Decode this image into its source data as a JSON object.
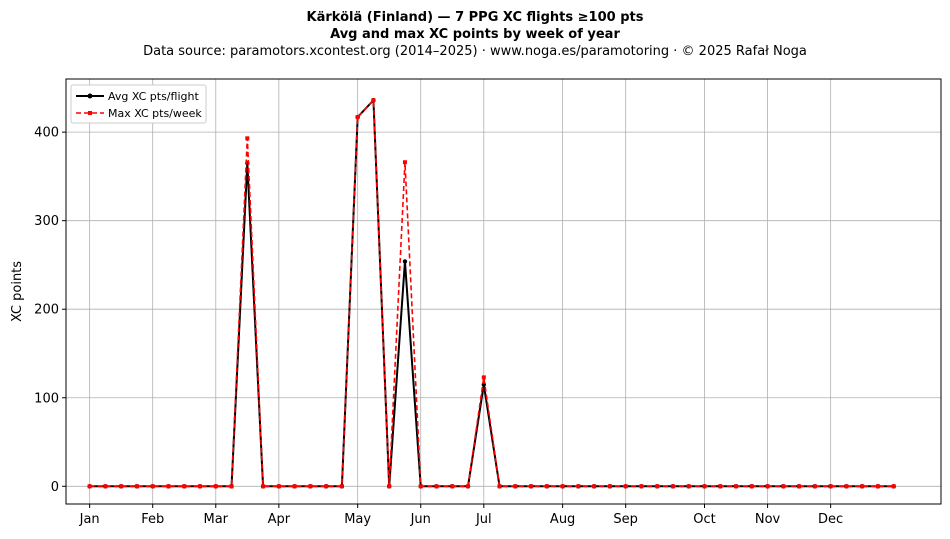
{
  "title": "Kärkölä (Finland)  —  7 PPG XC flights ≥100 pts",
  "subtitle": "Avg and max XC points by week of year",
  "source_line": "Data source: paramotors.xcontest.org (2014–2025)  ·  www.noga.es/paramotoring  ·  © 2025 Rafał Noga",
  "chart_data": {
    "type": "line",
    "x_label": "",
    "y_label": "XC points",
    "x_range": [
      -1.5,
      54
    ],
    "y_range": [
      -20,
      460
    ],
    "y_ticks": [
      0,
      100,
      200,
      300,
      400
    ],
    "x_ticks": [
      {
        "week": 0,
        "label": "Jan"
      },
      {
        "week": 4,
        "label": "Feb"
      },
      {
        "week": 8,
        "label": "Mar"
      },
      {
        "week": 12,
        "label": "Apr"
      },
      {
        "week": 17,
        "label": "May"
      },
      {
        "week": 21,
        "label": "Jun"
      },
      {
        "week": 25,
        "label": "Jul"
      },
      {
        "week": 30,
        "label": "Aug"
      },
      {
        "week": 34,
        "label": "Sep"
      },
      {
        "week": 39,
        "label": "Oct"
      },
      {
        "week": 43,
        "label": "Nov"
      },
      {
        "week": 47,
        "label": "Dec"
      }
    ],
    "grid": true,
    "legend_position": "top-left",
    "x": [
      0,
      1,
      2,
      3,
      4,
      5,
      6,
      7,
      8,
      9,
      10,
      11,
      12,
      13,
      14,
      15,
      16,
      17,
      18,
      19,
      20,
      21,
      22,
      23,
      24,
      25,
      26,
      27,
      28,
      29,
      30,
      31,
      32,
      33,
      34,
      35,
      36,
      37,
      38,
      39,
      40,
      41,
      42,
      43,
      44,
      45,
      46,
      47,
      48,
      49,
      50,
      51
    ],
    "series": [
      {
        "name": "Avg XC pts/flight",
        "color": "#000000",
        "style": "solid-circle",
        "values": [
          0,
          0,
          0,
          0,
          0,
          0,
          0,
          0,
          0,
          0,
          365,
          0,
          0,
          0,
          0,
          0,
          0,
          417,
          436,
          0,
          254,
          0,
          0,
          0,
          0,
          115,
          0,
          0,
          0,
          0,
          0,
          0,
          0,
          0,
          0,
          0,
          0,
          0,
          0,
          0,
          0,
          0,
          0,
          0,
          0,
          0,
          0,
          0,
          0,
          0,
          0,
          0
        ]
      },
      {
        "name": "Max XC pts/week",
        "color": "#ff0000",
        "style": "dashed-square",
        "values": [
          0,
          0,
          0,
          0,
          0,
          0,
          0,
          0,
          0,
          0,
          393,
          0,
          0,
          0,
          0,
          0,
          0,
          417,
          436,
          0,
          366,
          0,
          0,
          0,
          0,
          123,
          0,
          0,
          0,
          0,
          0,
          0,
          0,
          0,
          0,
          0,
          0,
          0,
          0,
          0,
          0,
          0,
          0,
          0,
          0,
          0,
          0,
          0,
          0,
          0,
          0,
          0
        ]
      }
    ]
  }
}
